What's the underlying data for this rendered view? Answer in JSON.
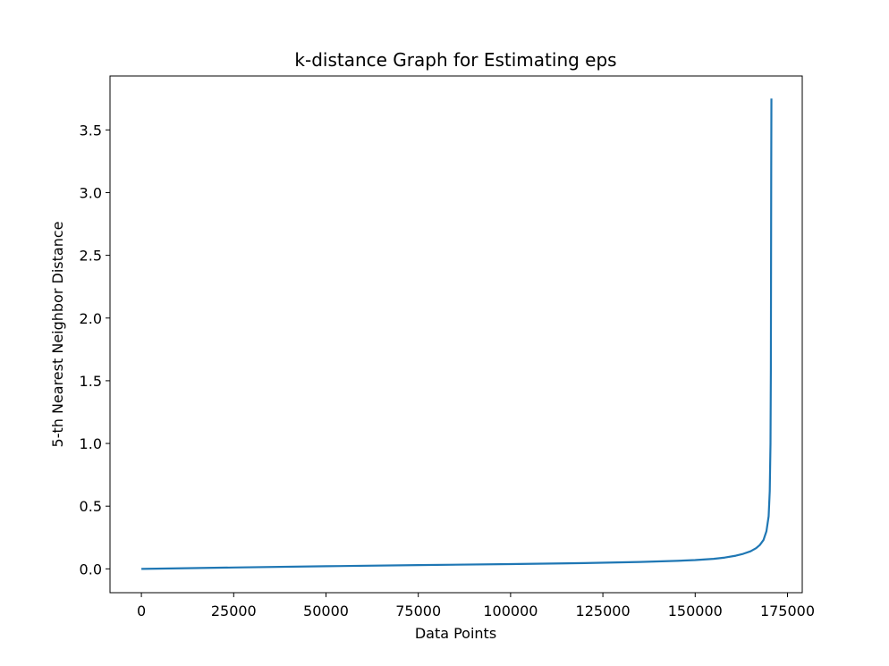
{
  "chart_data": {
    "type": "line",
    "title": "k-distance Graph for Estimating eps",
    "xlabel": "Data Points",
    "ylabel": "5-th Nearest Neighbor Distance",
    "xlim": [
      -8500,
      179000
    ],
    "ylim": [
      -0.19,
      3.93
    ],
    "xticks": [
      0,
      25000,
      50000,
      75000,
      100000,
      125000,
      150000,
      175000
    ],
    "xtick_labels": [
      "0",
      "25000",
      "50000",
      "75000",
      "100000",
      "125000",
      "150000",
      "175000"
    ],
    "yticks": [
      0.0,
      0.5,
      1.0,
      1.5,
      2.0,
      2.5,
      3.0,
      3.5
    ],
    "ytick_labels": [
      "0.0",
      "0.5",
      "1.0",
      "1.5",
      "2.0",
      "2.5",
      "3.0",
      "3.5"
    ],
    "grid": false,
    "legend": "none",
    "series": [
      {
        "color": "#1f77b4",
        "x": [
          0,
          10000,
          25000,
          50000,
          75000,
          100000,
          120000,
          135000,
          145000,
          150000,
          155000,
          158000,
          161000,
          163000,
          165000,
          166500,
          167500,
          168500,
          169300,
          169900,
          170200,
          170400,
          170500,
          170550,
          170600,
          170650
        ],
        "y": [
          0.0,
          0.004,
          0.011,
          0.021,
          0.03,
          0.038,
          0.046,
          0.055,
          0.064,
          0.07,
          0.08,
          0.09,
          0.105,
          0.12,
          0.14,
          0.165,
          0.19,
          0.23,
          0.3,
          0.42,
          0.62,
          1.0,
          1.6,
          2.4,
          3.2,
          3.75
        ]
      }
    ]
  }
}
